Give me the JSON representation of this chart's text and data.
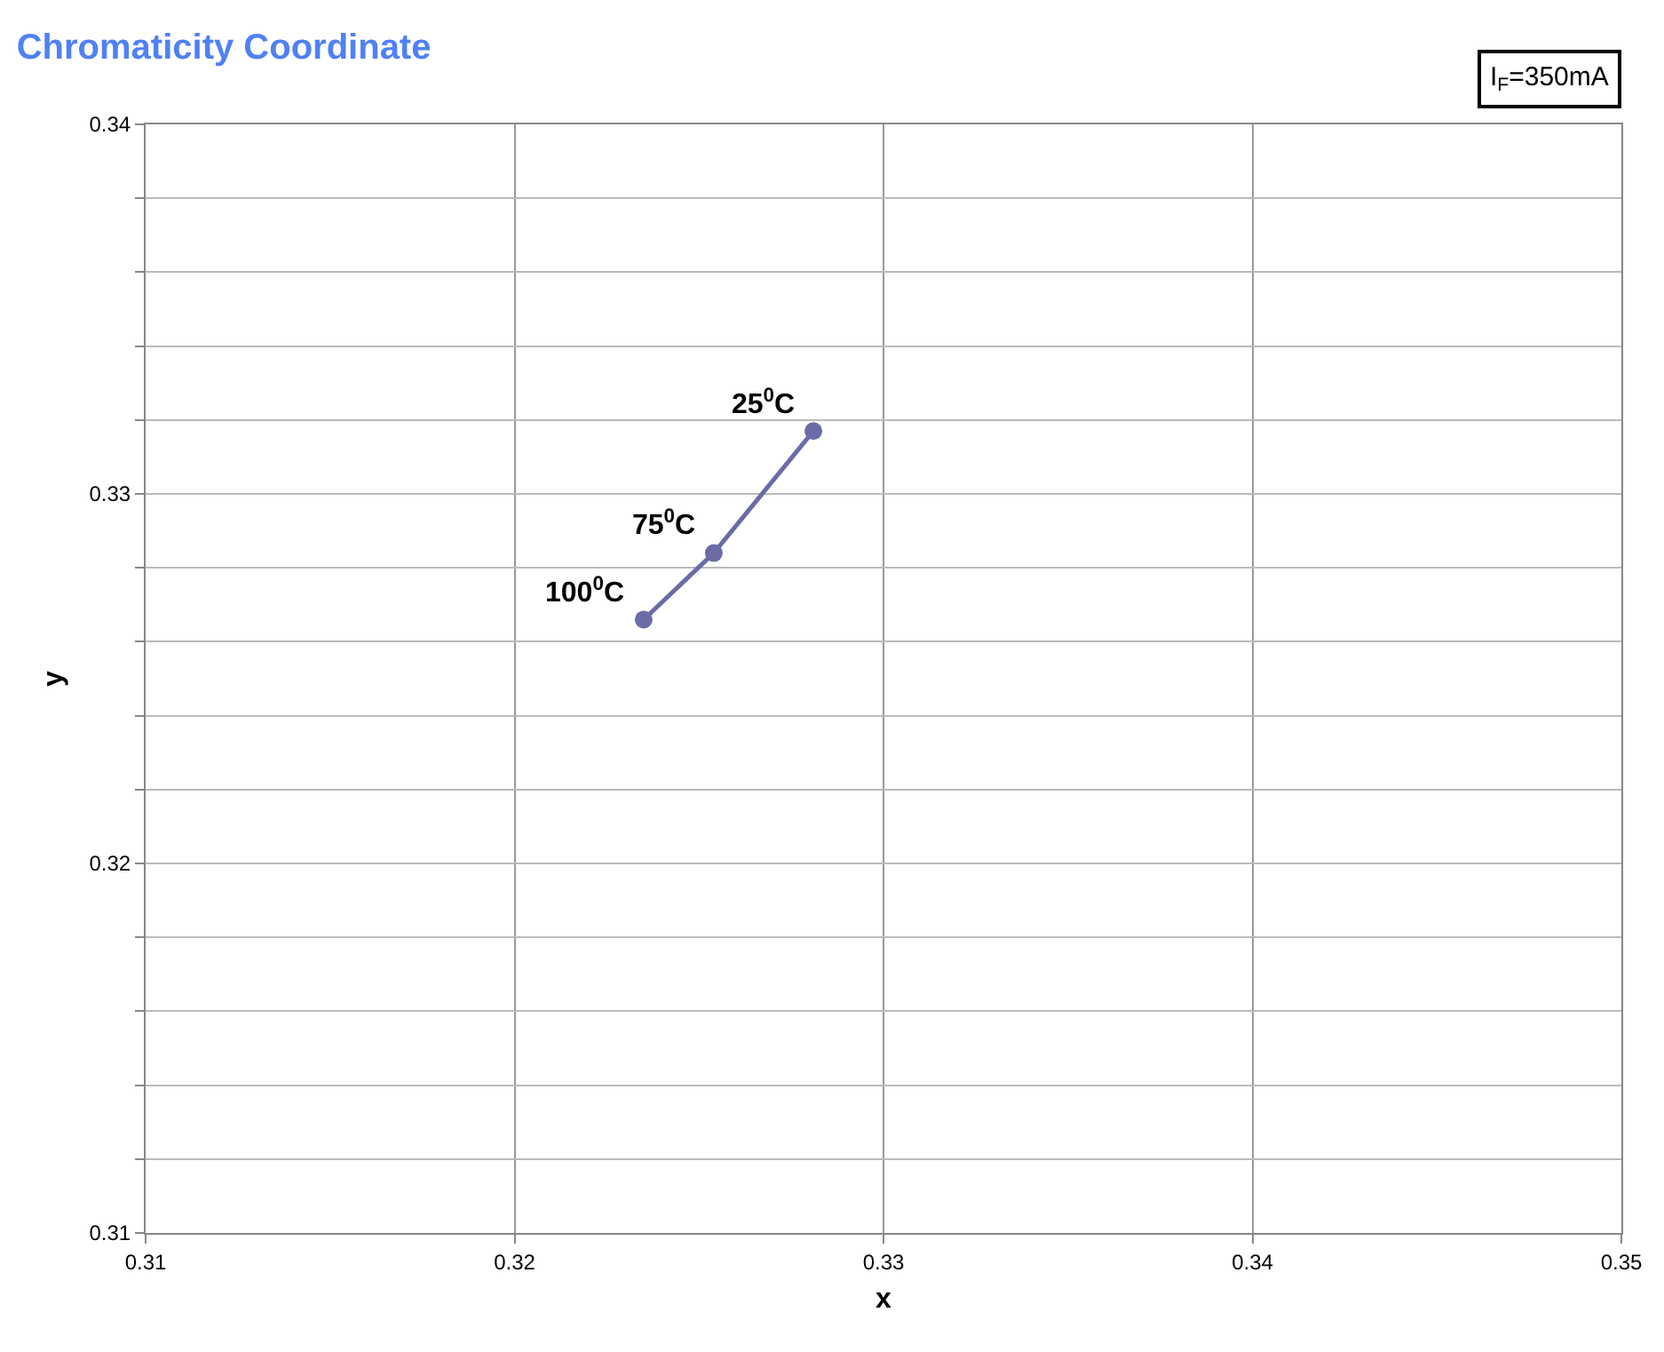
{
  "chart_data": {
    "type": "line",
    "title": "Chromaticity Coordinate",
    "xlabel": "x",
    "ylabel": "y",
    "x": [
      0.3281,
      0.3254,
      0.3235
    ],
    "series": [
      {
        "color": "#6b6ba6",
        "values": [
          0.3317,
          0.3284,
          0.3266
        ]
      }
    ],
    "annotations": [
      {
        "text": "25$^{0}$C",
        "x": 0.3281,
        "y": 0.3317
      },
      {
        "text": "75$^{0}$C",
        "x": 0.3254,
        "y": 0.3284
      },
      {
        "text": "100$^{0}$C",
        "x": 0.3235,
        "y": 0.3266
      },
      "I$_{F}$=350mA"
    ],
    "xlim": [
      0.31,
      0.35
    ],
    "xticks": [
      0.31,
      0.32,
      0.33,
      0.34,
      0.35
    ],
    "ylim": [
      0.31,
      0.34
    ],
    "yticks": [
      0.31,
      {
        "value": 0.312,
        "label": null
      },
      {
        "value": 0.314,
        "label": null
      },
      {
        "value": 0.316,
        "label": null
      },
      {
        "value": 0.318,
        "label": null
      },
      0.32,
      {
        "value": 0.322,
        "label": null
      },
      {
        "value": 0.324,
        "label": null
      },
      {
        "value": 0.326,
        "label": null
      },
      {
        "value": 0.328,
        "label": null
      },
      0.33,
      {
        "value": 0.332,
        "label": null
      },
      {
        "value": 0.334,
        "label": null
      },
      {
        "value": 0.336,
        "label": null
      },
      {
        "value": 0.338,
        "label": null
      },
      0.34
    ],
    "grid": true,
    "marker": "circle",
    "line_style": "solid"
  }
}
